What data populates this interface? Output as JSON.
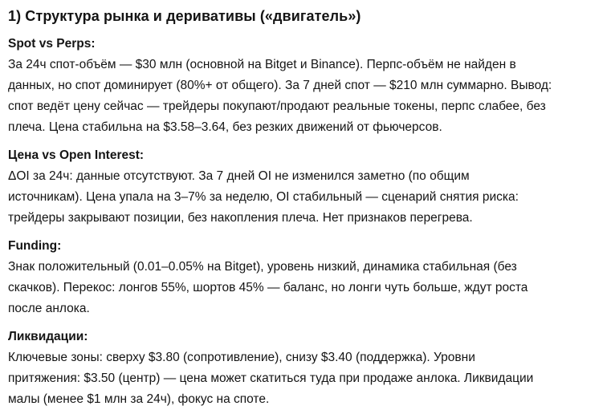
{
  "page": {
    "title": "1) Структура рынка и деривативы («двигатель»)",
    "text_color": "#141414",
    "background_color": "#ffffff"
  },
  "sections": [
    {
      "label": "Spot vs Perps:",
      "lines": [
        "За 24ч спот-объём — $30 млн (основной на Bitget и Binance). Перпс-объём не найден в",
        "данных, но спот доминирует (80%+ от общего). За 7 дней спот — $210 млн суммарно. Вывод:",
        "спот ведёт цену сейчас — трейдеры покупают/продают реальные токены, перпс слабее, без",
        "плеча. Цена стабильна на $3.58–3.64, без резких движений от фьючерсов."
      ]
    },
    {
      "label": "Цена vs Open Interest:",
      "lines": [
        "ΔOI за 24ч: данные отсутствуют. За 7 дней OI не изменился заметно (по общим",
        "источникам). Цена упала на 3–7% за неделю, OI стабильный — сценарий снятия риска:",
        "трейдеры закрывают позиции, без накопления плеча. Нет признаков перегрева."
      ]
    },
    {
      "label": "Funding:",
      "lines": [
        "Знак положительный (0.01–0.05% на Bitget), уровень низкий, динамика стабильная (без",
        "скачков). Перекос: лонгов 55%, шортов 45% — баланс, но лонги чуть больше, ждут роста",
        "после анлока."
      ]
    },
    {
      "label": "Ликвидации:",
      "lines": [
        "Ключевые зоны: сверху $3.80 (сопротивление), снизу $3.40 (поддержка). Уровни",
        "притяжения: $3.50 (центр) — цена может скатиться туда при продаже анлока. Ликвидации",
        "малы (менее $1 млн за 24ч), фокус на споте."
      ]
    }
  ]
}
